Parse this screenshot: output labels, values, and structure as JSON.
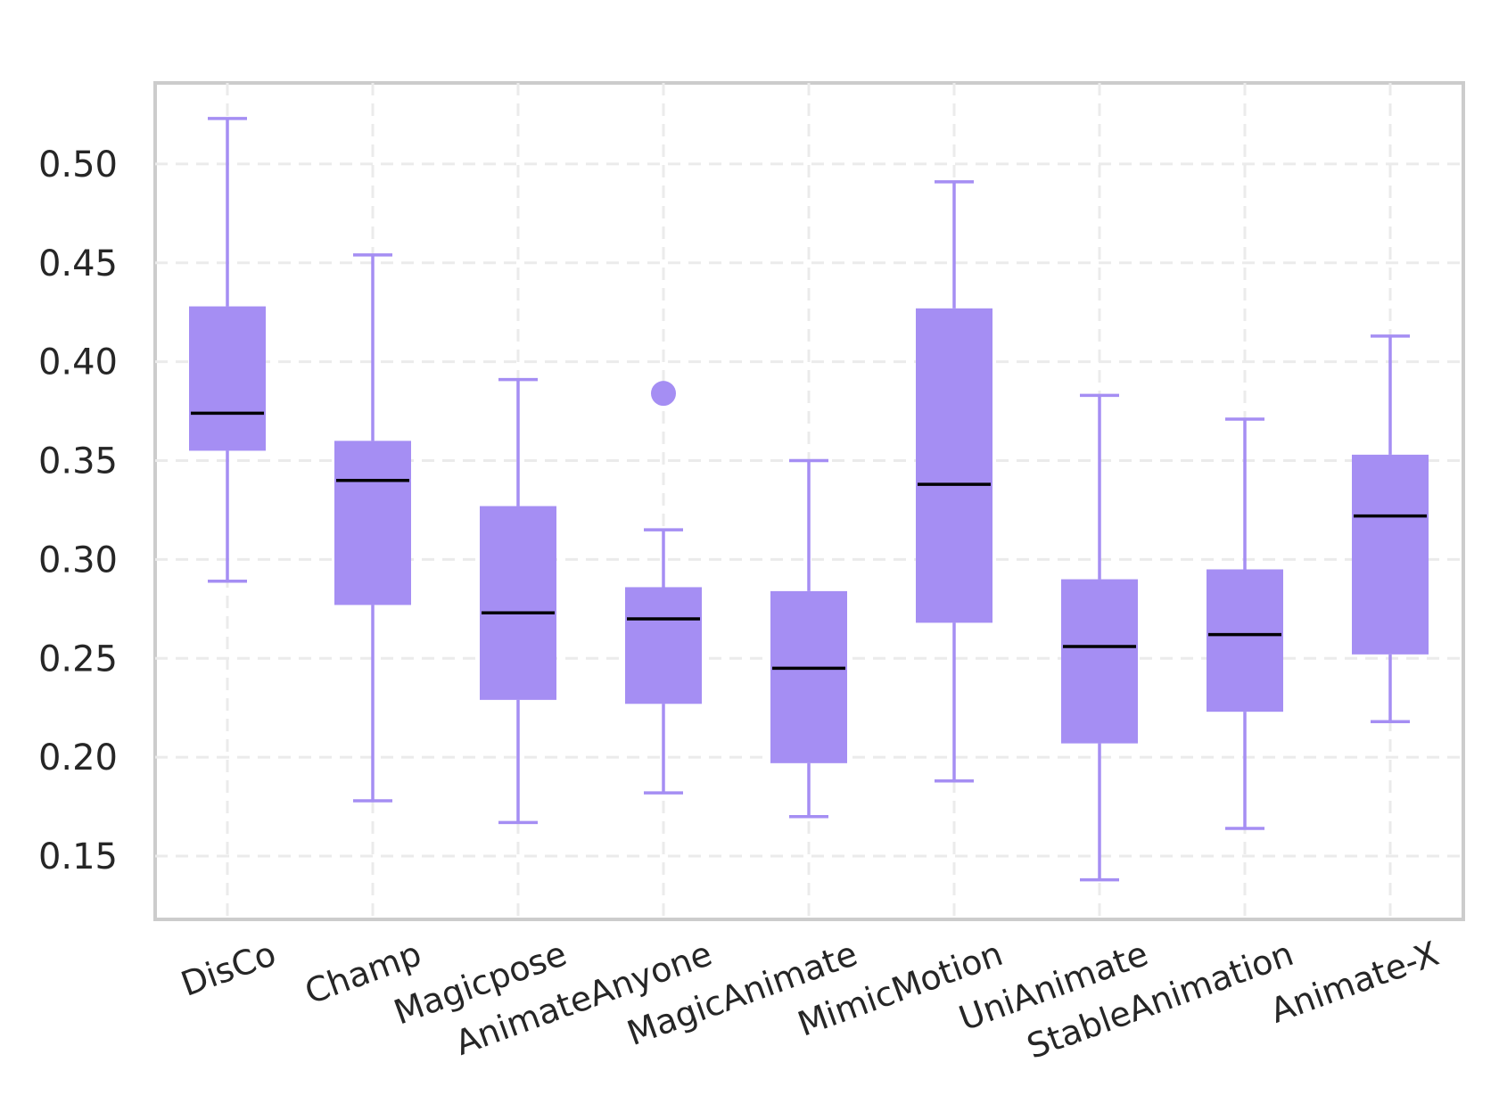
{
  "chart_data": {
    "type": "box",
    "title": "",
    "xlabel": "",
    "ylabel": "",
    "ylim": [
      0.118,
      0.541
    ],
    "yticks": [
      0.15,
      0.2,
      0.25,
      0.3,
      0.35,
      0.4,
      0.45,
      0.5
    ],
    "ytick_labels": [
      "0.15",
      "0.20",
      "0.25",
      "0.30",
      "0.35",
      "0.40",
      "0.45",
      "0.50"
    ],
    "grid": true,
    "categories": [
      "DisCo",
      "Champ",
      "Magicpose",
      "AnimateAnyone",
      "MagicAnimate",
      "MimicMotion",
      "UniAnimate",
      "StableAnimation",
      "Animate-X"
    ],
    "boxes": [
      {
        "whisker_low": 0.289,
        "q1": 0.355,
        "median": 0.374,
        "q3": 0.428,
        "whisker_high": 0.523,
        "outliers": []
      },
      {
        "whisker_low": 0.178,
        "q1": 0.277,
        "median": 0.34,
        "q3": 0.36,
        "whisker_high": 0.454,
        "outliers": []
      },
      {
        "whisker_low": 0.167,
        "q1": 0.229,
        "median": 0.273,
        "q3": 0.327,
        "whisker_high": 0.391,
        "outliers": []
      },
      {
        "whisker_low": 0.182,
        "q1": 0.227,
        "median": 0.27,
        "q3": 0.286,
        "whisker_high": 0.315,
        "outliers": [
          0.384
        ]
      },
      {
        "whisker_low": 0.17,
        "q1": 0.197,
        "median": 0.245,
        "q3": 0.284,
        "whisker_high": 0.35,
        "outliers": []
      },
      {
        "whisker_low": 0.188,
        "q1": 0.268,
        "median": 0.338,
        "q3": 0.427,
        "whisker_high": 0.491,
        "outliers": []
      },
      {
        "whisker_low": 0.138,
        "q1": 0.207,
        "median": 0.256,
        "q3": 0.29,
        "whisker_high": 0.383,
        "outliers": []
      },
      {
        "whisker_low": 0.164,
        "q1": 0.223,
        "median": 0.262,
        "q3": 0.295,
        "whisker_high": 0.371,
        "outliers": []
      },
      {
        "whisker_low": 0.218,
        "q1": 0.252,
        "median": 0.322,
        "q3": 0.353,
        "whisker_high": 0.413,
        "outliers": []
      }
    ],
    "colors": {
      "box": "#a58ef3",
      "median": "#000000",
      "grid": "#ebebeb",
      "frame": "#cccccc",
      "text": "#262626"
    }
  }
}
